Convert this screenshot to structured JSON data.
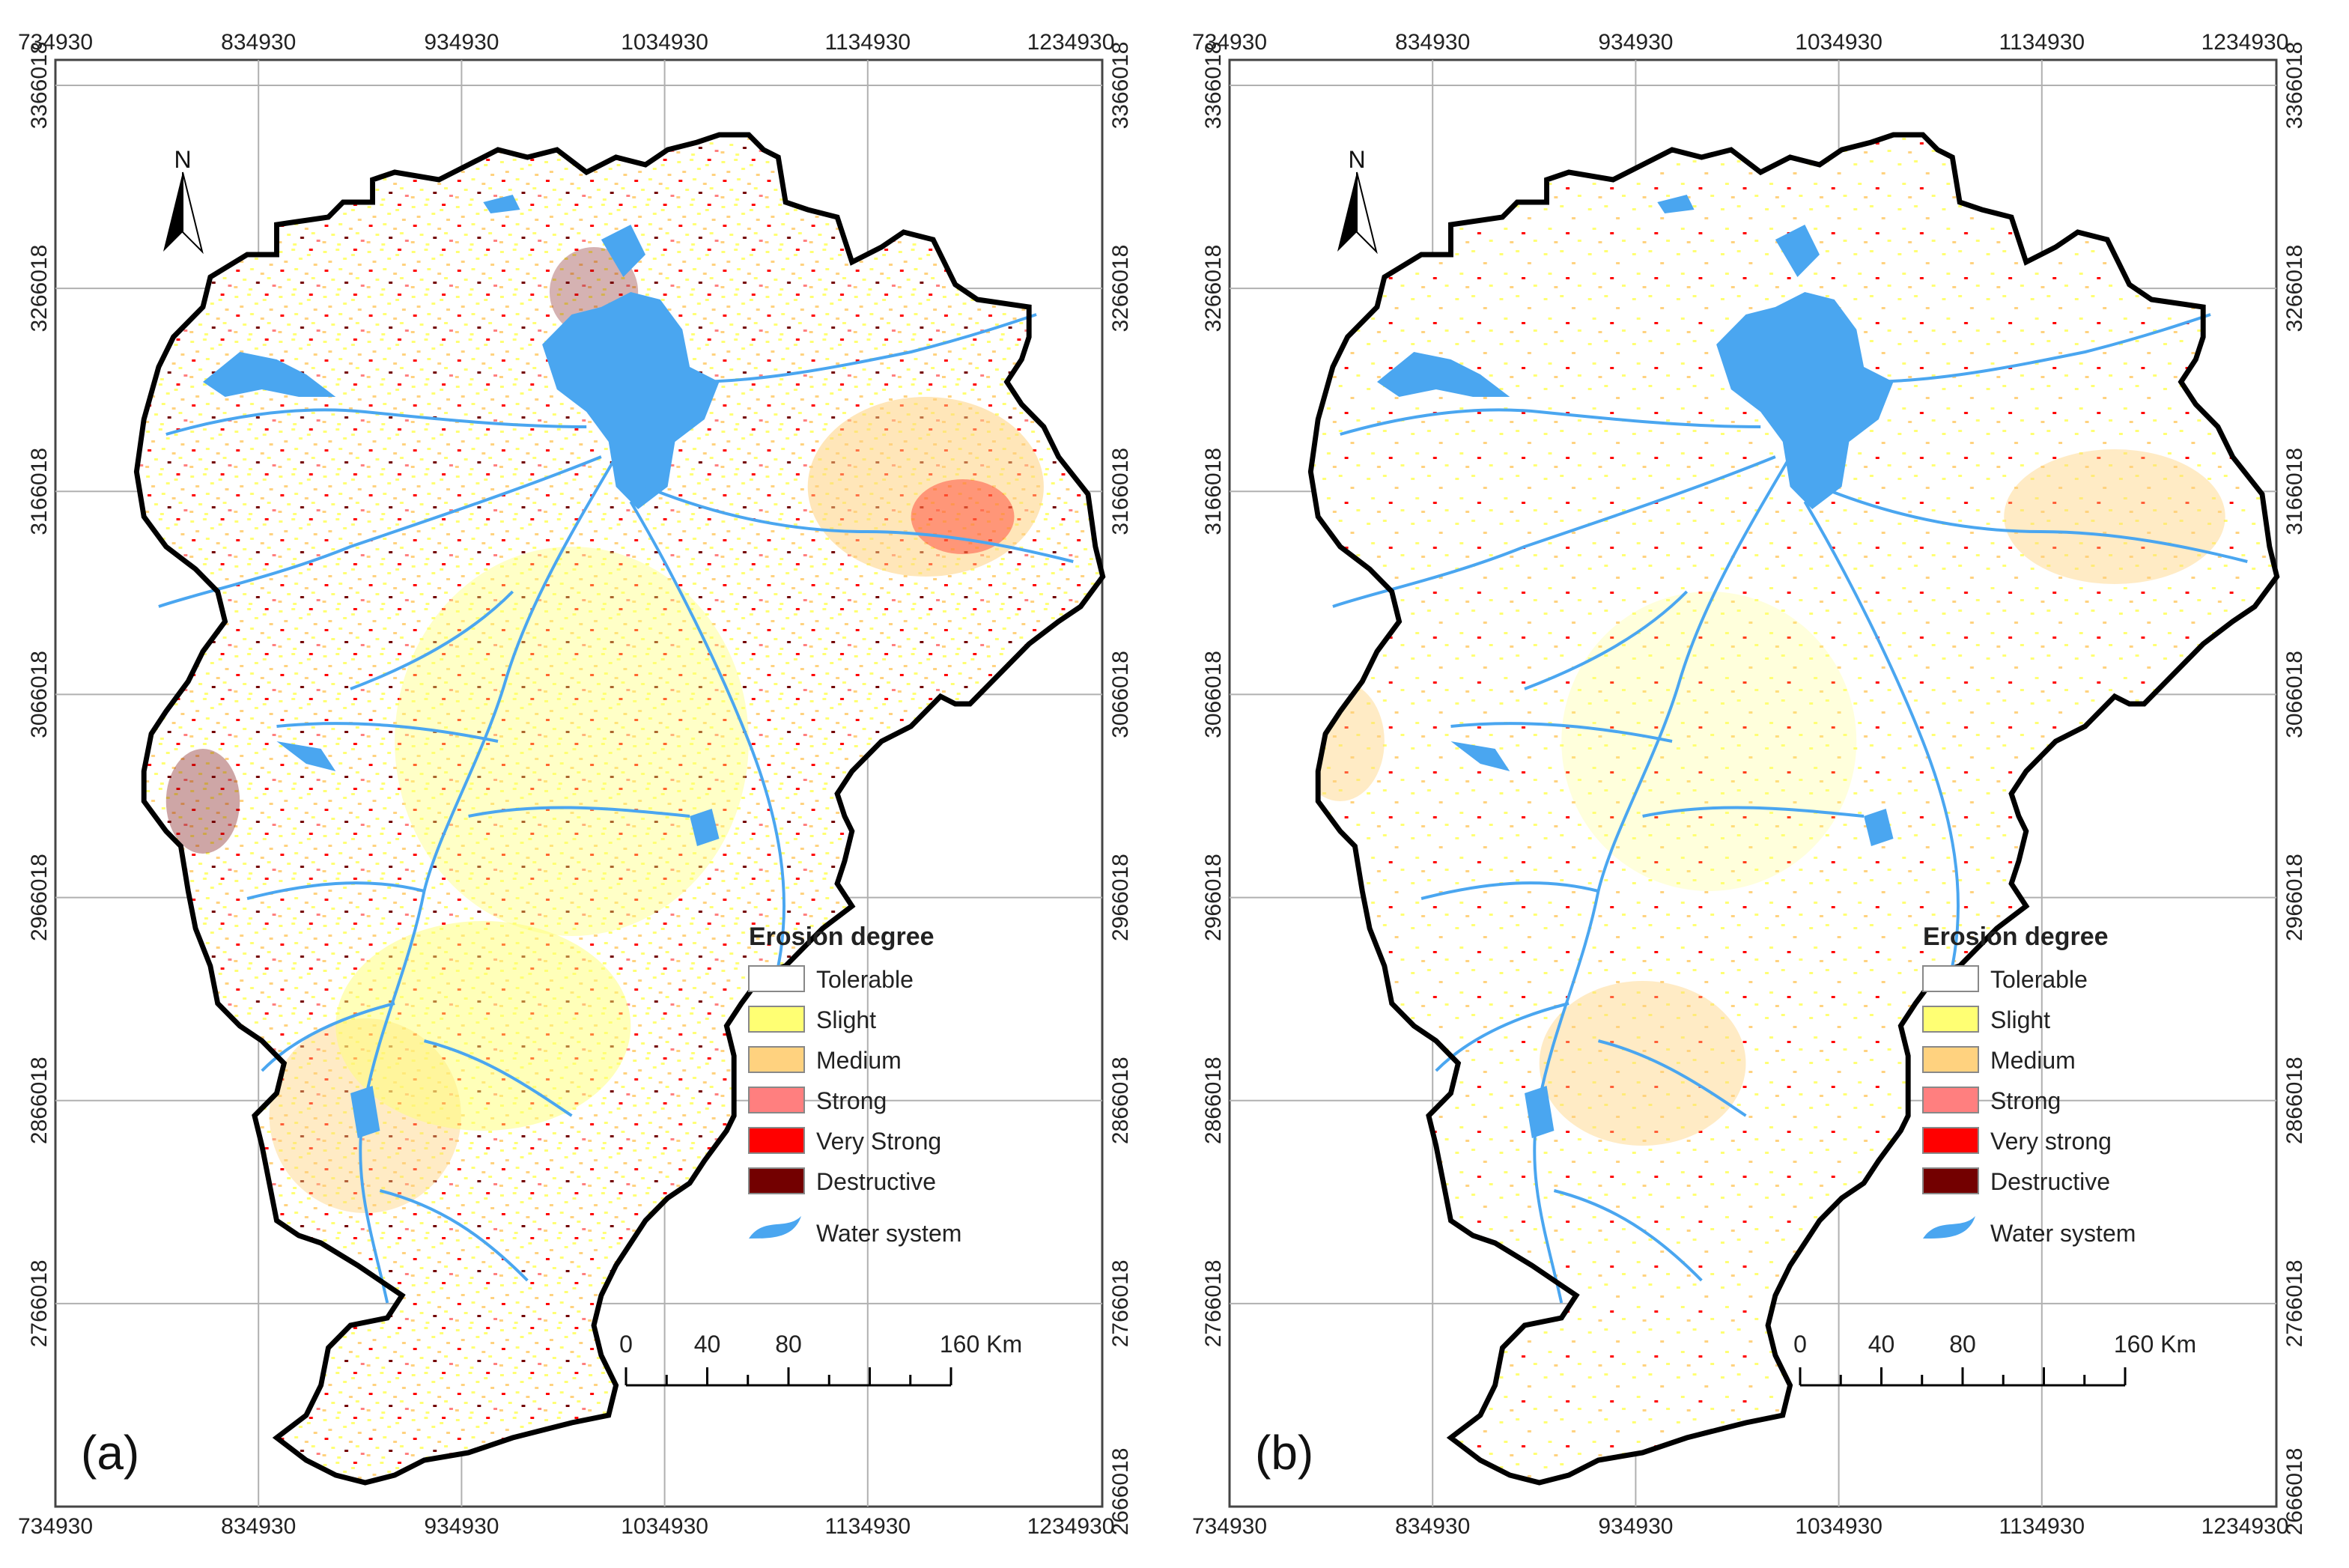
{
  "x_ticks": [
    "734930",
    "834930",
    "934930",
    "1034930",
    "1134930",
    "1234930"
  ],
  "y_ticks": [
    "3366018",
    "3266018",
    "3166018",
    "3066018",
    "2966018",
    "2866018",
    "2766018",
    "2666018"
  ],
  "north_label": "N",
  "scale": {
    "labels": [
      "0",
      "40",
      "80",
      "160 Km"
    ]
  },
  "colors": {
    "tolerable": "#ffffff",
    "slight": "#ffff73",
    "medium": "#ffd27f",
    "strong": "#ff7f7f",
    "very_strong": "#ff0000",
    "destructive": "#730000",
    "water": "#4aa6f0",
    "boundary": "#000000"
  },
  "panels": [
    {
      "label": "(a)",
      "legend": {
        "title": "Erosion degree",
        "items": [
          "Tolerable",
          "Slight",
          "Medium",
          "Strong",
          "Very Strong",
          "Destructive"
        ],
        "water": "Water system"
      }
    },
    {
      "label": "(b)",
      "legend": {
        "title": "Erosion degree",
        "items": [
          "Tolerable",
          "Slight",
          "Medium",
          "Strong",
          "Very strong",
          "Destructive"
        ],
        "water": "Water system"
      }
    }
  ]
}
